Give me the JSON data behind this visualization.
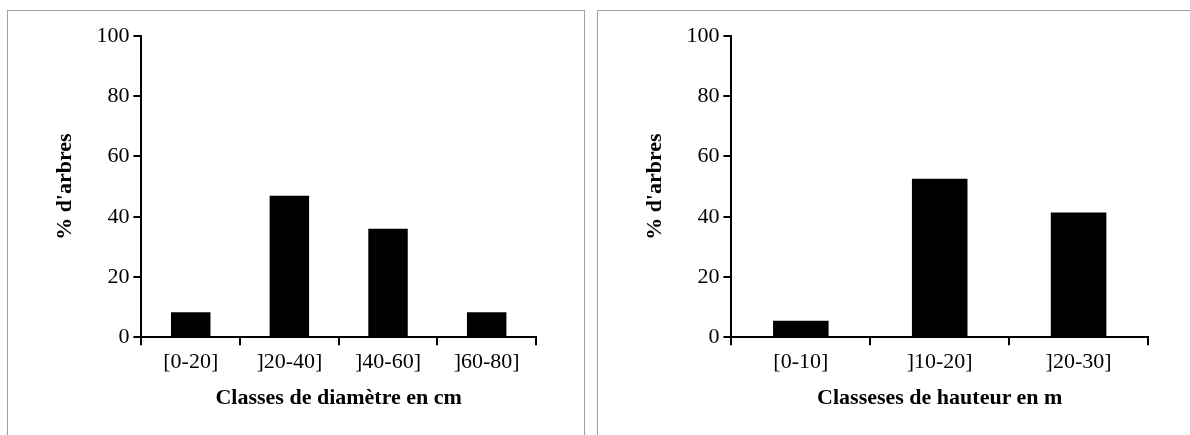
{
  "chart_data": [
    {
      "type": "bar",
      "categories": [
        "[0-20]",
        "]20-40]",
        "]40-60]",
        "]60-80]"
      ],
      "values": [
        8.3,
        47,
        36,
        8.3
      ],
      "color": "#000000",
      "xlabel": "Classes de diamètre en cm",
      "ylabel": "% d'arbres",
      "ylim": [
        0,
        100
      ],
      "yticks": [
        0,
        20,
        40,
        60,
        80,
        100
      ],
      "grid": false
    },
    {
      "type": "bar",
      "categories": [
        "[0-10]",
        "]10-20]",
        "]20-30]"
      ],
      "values": [
        5.5,
        52.6,
        41.4
      ],
      "color": "#000000",
      "xlabel": "Classeses de hauteur en m",
      "ylabel": "% d'arbres",
      "ylim": [
        0,
        100
      ],
      "yticks": [
        0,
        20,
        40,
        60,
        80,
        100
      ],
      "grid": false
    }
  ]
}
